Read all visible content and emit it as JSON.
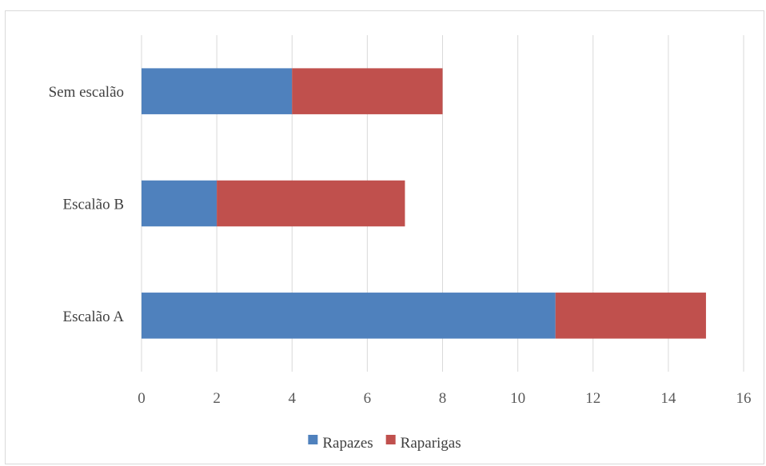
{
  "chart_data": {
    "type": "bar",
    "orientation": "horizontal",
    "stacked": true,
    "title": "",
    "xlabel": "",
    "ylabel": "",
    "categories": [
      "Sem escalão",
      "Escalão B",
      "Escalão A"
    ],
    "series": [
      {
        "name": "Rapazes",
        "values": [
          4,
          2,
          11
        ],
        "color": "#4f81bd"
      },
      {
        "name": "Raparigas",
        "values": [
          4,
          5,
          4
        ],
        "color": "#c0504d"
      }
    ],
    "xlim": [
      0,
      16
    ],
    "x_ticks": [
      0,
      2,
      4,
      6,
      8,
      10,
      12,
      14,
      16
    ],
    "x_tick_labels": [
      "0",
      "2",
      "4",
      "6",
      "8",
      "10",
      "12",
      "14",
      "16"
    ],
    "grid": "vertical",
    "legend": "bottom"
  }
}
